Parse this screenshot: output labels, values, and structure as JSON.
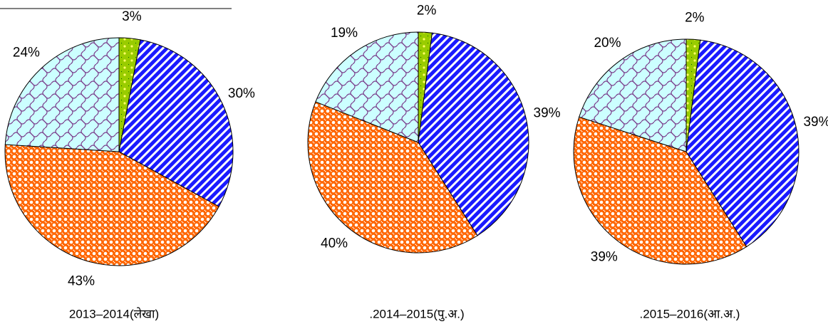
{
  "chart_data": [
    {
      "type": "pie",
      "title": "2013–2014(लेखा)",
      "values": [
        3,
        30,
        43,
        24
      ],
      "value_labels": [
        "3%",
        "30%",
        "43%",
        "24%"
      ],
      "colors": [
        "#99cc00",
        "#1a1aff",
        "#ff6600",
        "#ccffff"
      ]
    },
    {
      "type": "pie",
      "title": ".2014–2015(पु.अ.)",
      "values": [
        2,
        39,
        40,
        19
      ],
      "value_labels": [
        "2%",
        "39%",
        "40%",
        "19%"
      ],
      "colors": [
        "#99cc00",
        "#1a1aff",
        "#ff6600",
        "#ccffff"
      ]
    },
    {
      "type": "pie",
      "title": ".2015–2016(आ.अ.)",
      "values": [
        2,
        39,
        39,
        20
      ],
      "value_labels": [
        "2%",
        "39%",
        "39%",
        "20%"
      ],
      "colors": [
        "#99cc00",
        "#1a1aff",
        "#ff6600",
        "#ccffff"
      ]
    }
  ]
}
